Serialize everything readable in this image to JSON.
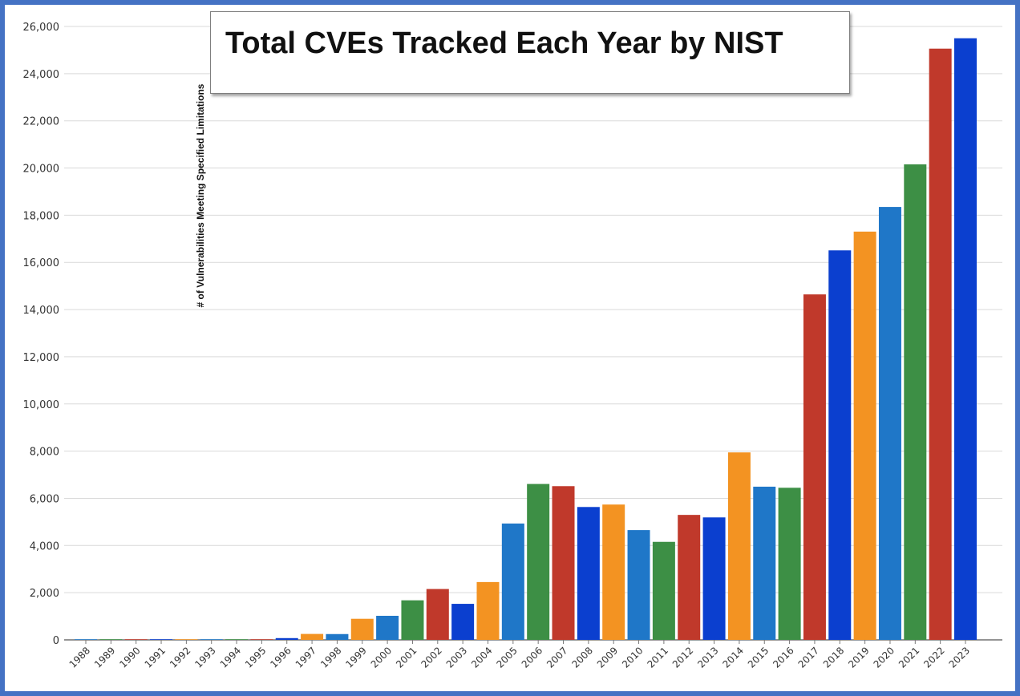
{
  "chart_data": {
    "type": "bar",
    "title": "Total CVEs Tracked Each Year by NIST",
    "xlabel": "",
    "ylabel": "# of Vulnerabilities Meeting Specified Limitations",
    "ylim": [
      0,
      26000
    ],
    "yticks": [
      "0",
      "2,000",
      "4,000",
      "6,000",
      "8,000",
      "10,000",
      "12,000",
      "14,000",
      "16,000",
      "18,000",
      "20,000",
      "22,000",
      "24,000",
      "26,000"
    ],
    "grid": true,
    "categories": [
      "1988",
      "1989",
      "1990",
      "1991",
      "1992",
      "1993",
      "1994",
      "1995",
      "1996",
      "1997",
      "1998",
      "1999",
      "2000",
      "2001",
      "2002",
      "2003",
      "2004",
      "2005",
      "2006",
      "2007",
      "2008",
      "2009",
      "2010",
      "2011",
      "2012",
      "2013",
      "2014",
      "2015",
      "2016",
      "2017",
      "2018",
      "2019",
      "2020",
      "2021",
      "2022",
      "2023"
    ],
    "values": [
      2,
      3,
      11,
      15,
      13,
      13,
      25,
      25,
      75,
      252,
      246,
      894,
      1020,
      1677,
      2156,
      1527,
      2451,
      4932,
      6608,
      6516,
      5632,
      5736,
      4653,
      4155,
      5297,
      5191,
      7946,
      6493,
      6447,
      14643,
      16509,
      17305,
      18350,
      20155,
      25059,
      25500
    ],
    "colors": [
      "#1f77c8",
      "#3d8f45",
      "#c0392b",
      "#0b3fcf",
      "#f39322",
      "#1f77c8",
      "#3d8f45",
      "#c0392b",
      "#0b3fcf",
      "#f39322",
      "#1f77c8",
      "#3d8f45",
      "#c0392b",
      "#0b3fcf",
      "#f39322",
      "#1f77c8",
      "#3d8f45",
      "#c0392b",
      "#0b3fcf",
      "#f39322",
      "#1f77c8",
      "#3d8f45",
      "#c0392b",
      "#0b3fcf",
      "#f39322",
      "#1f77c8",
      "#3d8f45",
      "#c0392b",
      "#0b3fcf",
      "#f39322",
      "#1f77c8",
      "#3d8f45",
      "#c0392b",
      "#0b3fcf",
      "#f39322",
      "#1f77c8"
    ],
    "bar_colors_ordered": [
      "#1f77c8",
      "#3d8f45",
      "#c0392b",
      "#0b3fcf",
      "#f39322",
      "#1f77c8",
      "#3d8f45",
      "#c0392b",
      "#0b3fcf",
      "#f39322",
      "#1f77c8",
      "#f39322",
      "#1f77c8",
      "#3d8f45",
      "#c0392b",
      "#0b3fcf",
      "#f39322",
      "#1f77c8",
      "#3d8f45",
      "#c0392b",
      "#0b3fcf",
      "#f39322",
      "#1f77c8",
      "#3d8f45",
      "#c0392b",
      "#0b3fcf",
      "#f39322",
      "#1f77c8",
      "#3d8f45",
      "#c0392b",
      "#0b3fcf",
      "#f39322",
      "#1f77c8",
      "#3d8f45",
      "#c0392b",
      "#0b3fcf"
    ],
    "frame_color": "#4472c4",
    "grid_color": "#d9d9d9"
  }
}
